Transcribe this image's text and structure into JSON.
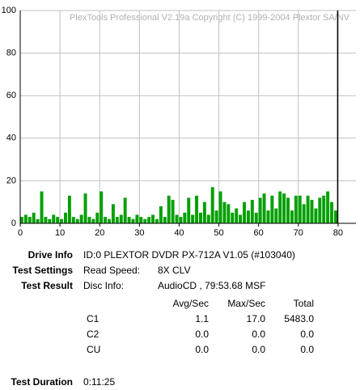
{
  "chart_data": {
    "type": "bar",
    "watermark": "PlexTools Professional V2.19a Copyright (C) 1999-2004 Plextor SA/NV",
    "x": [
      0,
      1,
      2,
      3,
      4,
      5,
      6,
      7,
      8,
      9,
      10,
      11,
      12,
      13,
      14,
      15,
      16,
      17,
      18,
      19,
      20,
      21,
      22,
      23,
      24,
      25,
      26,
      27,
      28,
      29,
      30,
      31,
      32,
      33,
      34,
      35,
      36,
      37,
      38,
      39,
      40,
      41,
      42,
      43,
      44,
      45,
      46,
      47,
      48,
      49,
      50,
      51,
      52,
      53,
      54,
      55,
      56,
      57,
      58,
      59,
      60,
      61,
      62,
      63,
      64,
      65,
      66,
      67,
      68,
      69,
      70,
      71,
      72,
      73,
      74,
      75,
      76,
      77,
      78,
      79
    ],
    "series": [
      {
        "color": "#00a000",
        "values": [
          3,
          4,
          3,
          5,
          2,
          15,
          3,
          2,
          4,
          3,
          2,
          5,
          13,
          3,
          2,
          4,
          14,
          3,
          2,
          5,
          15,
          3,
          2,
          9,
          3,
          4,
          12,
          3,
          2,
          4,
          3,
          2,
          3,
          4,
          2,
          8,
          3,
          13,
          11,
          4,
          3,
          5,
          12,
          4,
          13,
          5,
          10,
          4,
          17,
          6,
          15,
          10,
          9,
          5,
          7,
          4,
          10,
          6,
          11,
          5,
          12,
          14,
          6,
          13,
          7,
          15,
          14,
          12,
          6,
          13,
          13,
          9,
          13,
          11,
          7,
          12,
          13,
          15,
          10,
          6
        ]
      }
    ],
    "end_line_x": 79.9,
    "xlim": [
      0,
      84.5
    ],
    "xticks": [
      0,
      10,
      20,
      30,
      40,
      50,
      60,
      70,
      80
    ],
    "ylim": [
      0,
      100
    ],
    "yticks": [
      0,
      20,
      40,
      60,
      80,
      100
    ],
    "grid": true
  },
  "info": {
    "drive_info": {
      "label": "Drive Info",
      "value": "ID:0 PLEXTOR DVDR PX-712A V1.05 (#103040)"
    },
    "test_settings": {
      "label": "Test Settings",
      "key": "Read Speed:",
      "value": "8X CLV"
    },
    "test_result": {
      "label": "Test Result",
      "key": "Disc Info:",
      "value": "AudioCD , 79:53.68 MSF"
    },
    "table": {
      "header": [
        "Avg/Sec",
        "Max/Sec",
        "Total"
      ],
      "rows": [
        [
          "C1",
          "1.1",
          "17.0",
          "5483.0"
        ],
        [
          "C2",
          "0.0",
          "0.0",
          "0.0"
        ],
        [
          "CU",
          "0.0",
          "0.0",
          "0.0"
        ]
      ]
    },
    "test_duration": {
      "label": "Test Duration",
      "value": "0:11:25"
    }
  }
}
